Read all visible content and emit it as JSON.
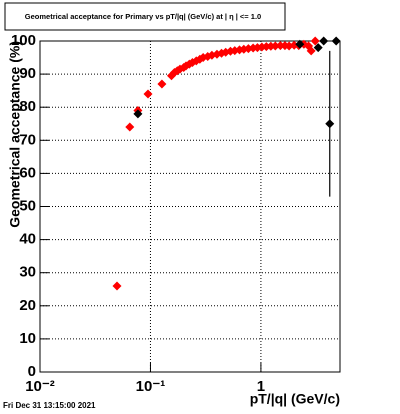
{
  "chart_data": {
    "type": "scatter",
    "title": "Geometrical acceptance for Primary vs pT/|q| (GeV/c) at |  η | <= 1.0",
    "x_label": "pT/|q| (GeV/c)",
    "y_label": "Geometrical acceptance (%)",
    "timestamp": "Fri Dec 31 13:15:00 2021",
    "xscale": "log",
    "xlim": [
      0.01,
      5.2
    ],
    "ylim": [
      0,
      100
    ],
    "xticks": [
      {
        "value": 0.01,
        "label": "10⁻²"
      },
      {
        "value": 0.1,
        "label": "10⁻¹"
      },
      1
    ],
    "yticks": [
      0,
      10,
      20,
      30,
      40,
      50,
      60,
      70,
      80,
      90,
      100
    ],
    "grid": true,
    "series": [
      {
        "color": "#ff0000",
        "x": [
          0.0498,
          0.065,
          0.077,
          0.095,
          0.127,
          0.155,
          0.165,
          0.175,
          0.185,
          0.2,
          0.21,
          0.225,
          0.24,
          0.26,
          0.28,
          0.3,
          0.33,
          0.36,
          0.4,
          0.44,
          0.48,
          0.53,
          0.58,
          0.64,
          0.7,
          0.77,
          0.85,
          0.93,
          1.02,
          1.12,
          1.23,
          1.35,
          1.5,
          1.65,
          1.8,
          2.0,
          2.2,
          2.45,
          2.7,
          2.85,
          3.1
        ],
        "values": [
          26,
          74,
          79,
          84,
          87,
          89.5,
          90.5,
          91,
          91.5,
          92,
          92.5,
          93,
          93.5,
          94,
          94.5,
          95,
          95.3,
          95.7,
          96,
          96.3,
          96.6,
          96.9,
          97.1,
          97.3,
          97.5,
          97.7,
          97.9,
          98,
          98.2,
          98.3,
          98.4,
          98.5,
          98.6,
          98.6,
          98.5,
          98.7,
          98.6,
          99,
          98.5,
          97,
          100
        ]
      },
      {
        "color": "#000000",
        "x": [
          0.077,
          2.25,
          3.3,
          3.7,
          4.2,
          4.8
        ],
        "values": [
          78,
          99,
          98,
          100,
          75,
          100
        ],
        "errors": [
          null,
          null,
          null,
          null,
          22,
          null
        ]
      }
    ]
  }
}
